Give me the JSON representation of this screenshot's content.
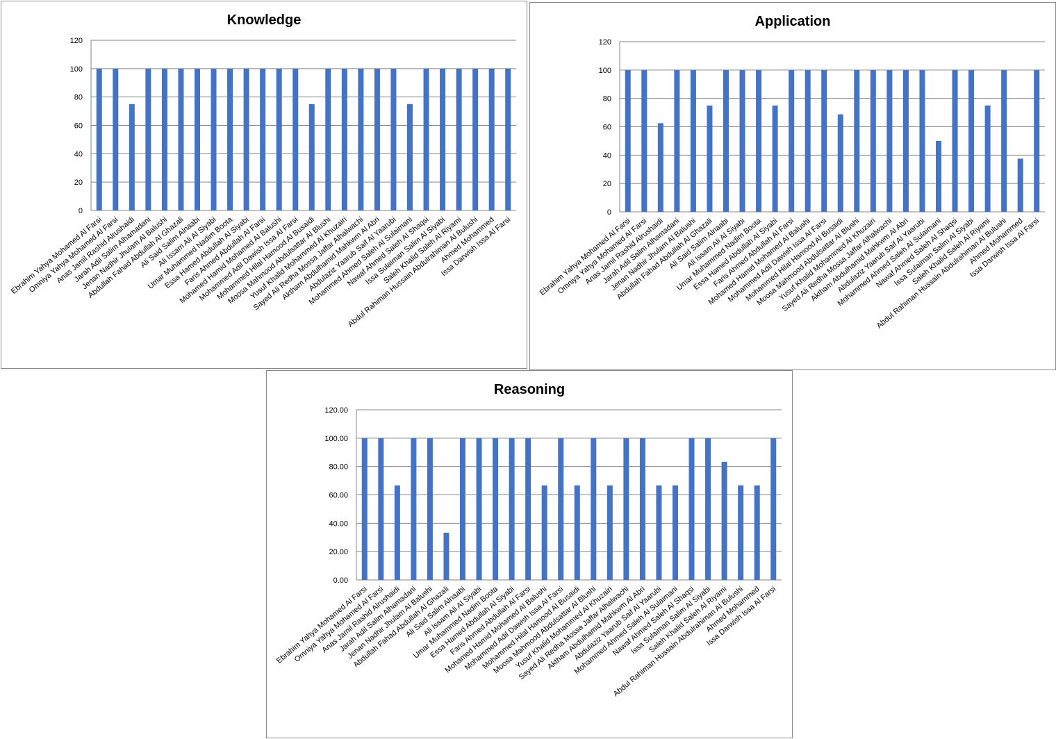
{
  "chart_data": [
    {
      "type": "bar",
      "title": "Knowledge",
      "xlabel": "",
      "ylabel": "",
      "ylim": [
        0,
        120
      ],
      "yticks": [
        "0",
        "20",
        "40",
        "60",
        "80",
        "100",
        "120"
      ],
      "grid": true,
      "categories": [
        "Ebrahim Yahya Mohamed Al Farsi",
        "Omniya Yahya Mohamed Al Farsi",
        "Anas Jamil  Rashid Alrushaidi",
        "Jarah Adil Salim Alhamadani",
        "Jenan Nadhir  Jhulam Al Balushi",
        "Abdullah Fahad Abdullah Al Ghazali",
        "Ali  Said Salim Alnaabi",
        "Ali Issam Ali Al Siyabi",
        "Umar Muhammed  Nadim  Boota",
        "Essa Hamed Abdullah Al Siyabi",
        "Faris Ahmed Abdullah Al Farsi",
        "Mohamed Hamid  Mohamed Al Balushi",
        "Mohammed Adil Dawish Issa Al Farsi",
        "Mohammed Hilal Hamood Al Busaidi",
        "Moosa Mahmood  Abdulsattar Al Blushi",
        "Yusuf Khalid Mohammed Al Khuzairi",
        "Sayed Ali Redha Mossa Jaffar Alhalwachi",
        "Aktham Abdulhamid Mahkwm Al Abri",
        "Abdulaziz Yaarub Saif Al Yaarubi",
        "Mohammed Ahmed Saleh Al Sulaimani",
        "Nawaf Ahmed Saleh Al Shaqsi",
        "Issa Sulaiman  Salim Al Siyabi",
        "Saleh Khalid Saleh Al Riyami",
        "Abdul Rahiman  Hussain Abdulrahiman Al Bulushi",
        "Ahmed Mohammed",
        "Issa Darwish Issa Al Farsi"
      ],
      "values": [
        100,
        100,
        75,
        100,
        100,
        100,
        100,
        100,
        100,
        100,
        100,
        100,
        100,
        75,
        100,
        100,
        100,
        100,
        100,
        75,
        100,
        100,
        100,
        100,
        100,
        100
      ],
      "color": "#4472C4"
    },
    {
      "type": "bar",
      "title": "Application",
      "xlabel": "",
      "ylabel": "",
      "ylim": [
        0,
        120
      ],
      "yticks": [
        "0",
        "20",
        "40",
        "60",
        "80",
        "100",
        "120"
      ],
      "grid": true,
      "categories": [
        "Ebrahim Yahya Mohamed Al Farsi",
        "Omniya Yahya Mohamed Al Farsi",
        "Anas Jamil  Rashid Alrushaidi",
        "Jarah Adil Salim Alhamadani",
        "Jenan Nadhir  Jhulam Al Balushi",
        "Abdullah Fahad Abdullah Al Ghazali",
        "Ali  Said Salim Alnaabi",
        "Ali Issam Ali Al Siyabi",
        "Umar Muhammed  Nadim  Boota",
        "Essa Hamed Abdullah Al Siyabi",
        "Faris Ahmed Abdullah Al Farsi",
        "Mohamed Hamid  Mohamed Al Balushi",
        "Mohammed Adil Dawish Issa Al Farsi",
        "Mohammed Hilal Hamood Al Busaidi",
        "Moosa Mahmood  Abdulsattar Al Blushi",
        "Yusuf Khalid Mohammed Al Khuzairi",
        "Sayed Ali Redha Mossa Jaffar Alhalwachi",
        "Aktham Abdulhamid Mahkwm Al Abri",
        "Abdulaziz Yaarub Saif Al Yaarubi",
        "Mohammed Ahmed Saleh Al Sulaimani",
        "Nawaf Ahmed Saleh Al Shaqsi",
        "Issa Sulaiman  Salim Al Siyabi",
        "Saleh Khalid Saleh Al Riyami",
        "Abdul Rahiman  Hussain Abdulrahiman Al Bulushi",
        "Ahmed Mohammed",
        "Issa Darwish Issa Al Farsi"
      ],
      "values": [
        100,
        100,
        62.5,
        100,
        100,
        75,
        100,
        100,
        100,
        75,
        100,
        100,
        100,
        68.75,
        100,
        100,
        100,
        100,
        100,
        50,
        100,
        100,
        75,
        100,
        37.5,
        100
      ],
      "color": "#4472C4"
    },
    {
      "type": "bar",
      "title": "Reasoning",
      "xlabel": "",
      "ylabel": "",
      "ylim": [
        0,
        120
      ],
      "yticks": [
        "0.00",
        "20.00",
        "40.00",
        "60.00",
        "80.00",
        "100.00",
        "120.00"
      ],
      "grid": true,
      "categories": [
        "Ebrahim Yahya Mohamed Al Farsi",
        "Omniya Yahya Mohamed Al Farsi",
        "Anas Jamil  Rashid Alrushaidi",
        "Jarah Adil Salim Alhamadani",
        "Jenan Nadhir  Jhulam Al Balushi",
        "Abdullah Fahad Abdullah Al Ghazali",
        "Ali  Said Salim Alnaabi",
        "Ali Issam Ali Al Siyabi",
        "Umar Muhammed  Nadim  Boota",
        "Essa Hamed Abdullah Al Siyabi",
        "Faris Ahmed Abdullah Al Farsi",
        "Mohamed Hamid  Mohamed Al Balushi",
        "Mohammed Adil Dawish Issa Al Farsi",
        "Mohammed Hilal Hamood Al Busaidi",
        "Moosa Mahmood  Abdulsattar Al Blushi",
        "Yusuf Khalid Mohammed Al Khuzairi",
        "Sayed Ali Redha Mossa Jaffar Alhalwachi",
        "Aktham Abdulhamid Mahkwm Al Abri",
        "Abdulaziz Yaarub Saif Al Yaarubi",
        "Mohammed Ahmed Saleh Al Sulaimani",
        "Nawaf Ahmed Saleh Al Shaqsi",
        "Issa Sulaiman  Salim Al Siyabi",
        "Saleh Khalid Saleh Al Riyami",
        "Abdul Rahiman  Hussain Abdulrahiman Al Bulushi",
        "Ahmed Mohammed",
        "Issa Darwish Issa Al Farsi"
      ],
      "values": [
        100,
        100,
        66.67,
        100,
        100,
        33.33,
        100,
        100,
        100,
        100,
        100,
        66.67,
        100,
        66.67,
        100,
        66.67,
        100,
        100,
        66.67,
        66.67,
        100,
        100,
        83.33,
        66.67,
        66.67,
        100
      ],
      "color": "#4472C4"
    }
  ]
}
